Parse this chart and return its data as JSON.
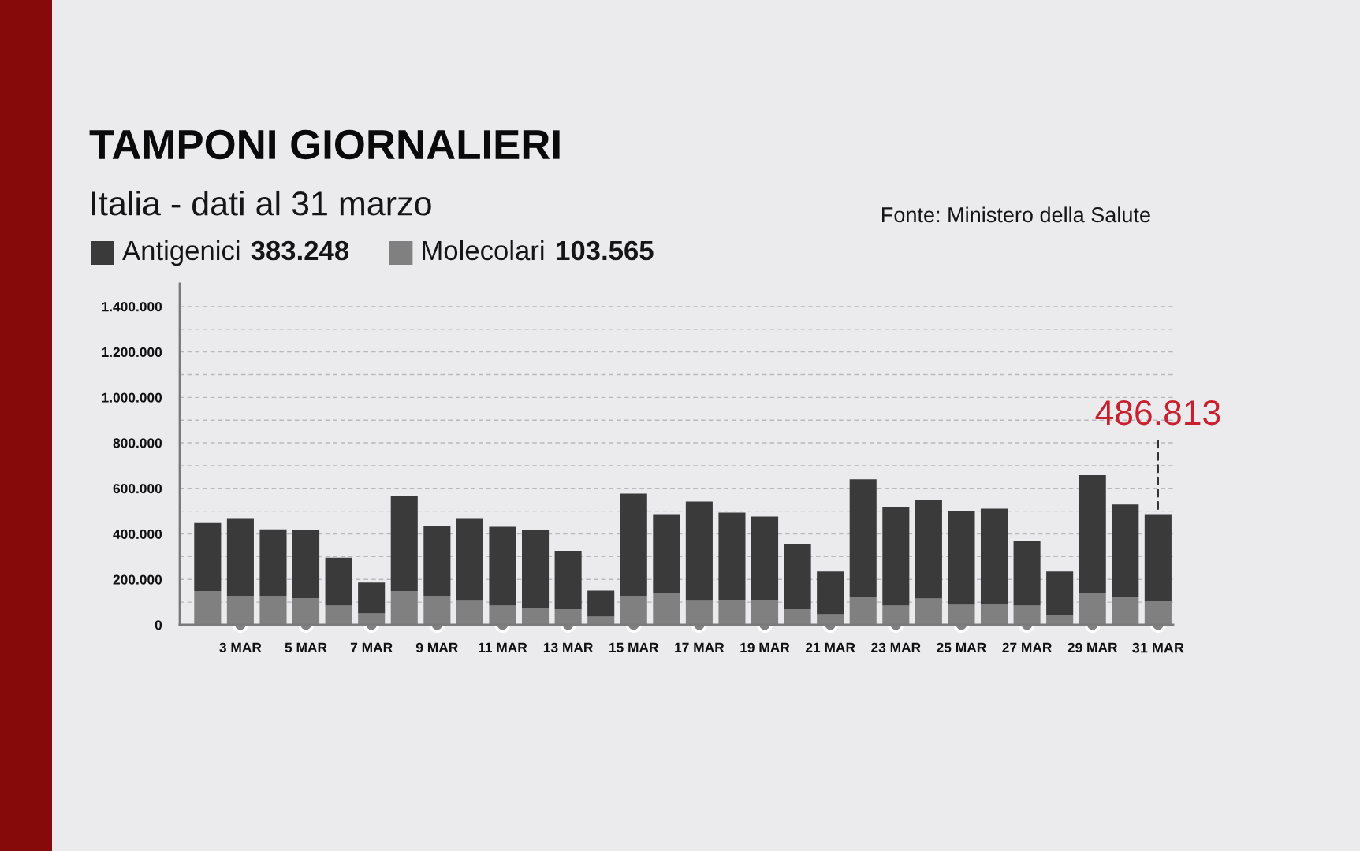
{
  "chart_data": {
    "type": "bar",
    "stacked": true,
    "title": "TAMPONI GIORNALIERI",
    "subtitle": "Italia - dati al 31 marzo",
    "categories": [
      null,
      "3 MAR",
      null,
      "5 MAR",
      null,
      "7 MAR",
      null,
      "9 MAR",
      null,
      "11 MAR",
      null,
      "13 MAR",
      null,
      "15 MAR",
      null,
      "17 MAR",
      null,
      "19 MAR",
      null,
      "21 MAR",
      null,
      "23 MAR",
      null,
      "25 MAR",
      null,
      "27 MAR",
      null,
      "29 MAR",
      null,
      "31 MAR"
    ],
    "series": [
      {
        "name": "Molecolari",
        "color": "#808080",
        "values": [
          149000,
          127000,
          127000,
          118000,
          85000,
          50000,
          149000,
          127000,
          106000,
          85000,
          75000,
          68000,
          36000,
          127000,
          141000,
          106000,
          109000,
          109000,
          68000,
          47000,
          120000,
          85000,
          116000,
          88000,
          92000,
          85000,
          43000,
          141000,
          120000,
          103565
        ]
      },
      {
        "name": "Antigenici",
        "color": "#3a3a3a",
        "values": [
          299000,
          339000,
          293000,
          299000,
          210000,
          136000,
          418000,
          307000,
          360000,
          346000,
          342000,
          258000,
          115000,
          450000,
          346000,
          436000,
          385000,
          367000,
          289000,
          188000,
          520000,
          433000,
          433000,
          413000,
          419000,
          283000,
          192000,
          517000,
          409000,
          383248
        ]
      }
    ],
    "ylim": [
      0,
      1500000
    ],
    "yticks": [
      0,
      {
        "value": 100000,
        "label": null
      },
      {
        "value": 200000,
        "label": "200.000"
      },
      {
        "value": 300000,
        "label": null
      },
      {
        "value": 400000,
        "label": "400.000"
      },
      {
        "value": 500000,
        "label": null
      },
      {
        "value": 600000,
        "label": "600.000"
      },
      {
        "value": 700000,
        "label": null
      },
      {
        "value": 800000,
        "label": "800.000"
      },
      {
        "value": 900000,
        "label": null
      },
      {
        "value": 1000000,
        "label": "1.000.000"
      },
      {
        "value": 1100000,
        "label": null
      },
      {
        "value": 1200000,
        "label": "1.200.000"
      },
      {
        "value": 1300000,
        "label": null
      },
      {
        "value": 1400000,
        "label": "1.400.000"
      },
      {
        "value": 1500000,
        "label": null
      }
    ],
    "grid": "y",
    "legend": "top left",
    "annotations": [
      "383.248",
      "103.565",
      "Fonte: Ministero della Salute",
      {
        "text": "486.813",
        "x": "31 MAR",
        "y": 486813
      }
    ]
  }
}
